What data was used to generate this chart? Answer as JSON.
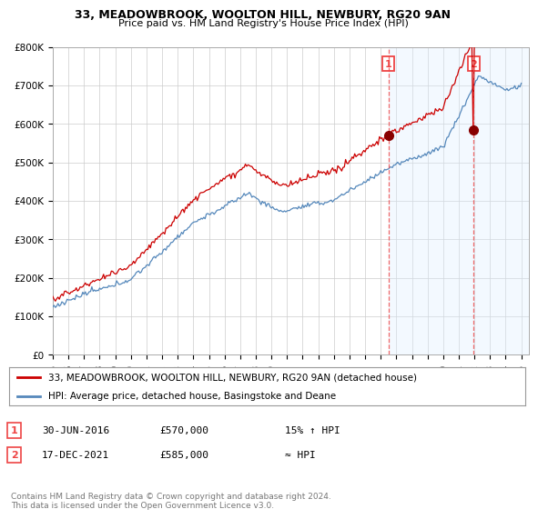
{
  "title": "33, MEADOWBROOK, WOOLTON HILL, NEWBURY, RG20 9AN",
  "subtitle": "Price paid vs. HM Land Registry's House Price Index (HPI)",
  "ylabel_ticks": [
    "£0",
    "£100K",
    "£200K",
    "£300K",
    "£400K",
    "£500K",
    "£600K",
    "£700K",
    "£800K"
  ],
  "ytick_values": [
    0,
    100000,
    200000,
    300000,
    400000,
    500000,
    600000,
    700000,
    800000
  ],
  "ylim": [
    0,
    800000
  ],
  "xlim_start": 1995,
  "xlim_end": 2025.5,
  "sale1_date_num": 2016.5,
  "sale1_price": 570000,
  "sale1_label": "1",
  "sale2_date_num": 2021.95,
  "sale2_price": 585000,
  "sale2_label": "2",
  "legend_line1": "33, MEADOWBROOK, WOOLTON HILL, NEWBURY, RG20 9AN (detached house)",
  "legend_line2": "HPI: Average price, detached house, Basingstoke and Deane",
  "table_row1": [
    "1",
    "30-JUN-2016",
    "£570,000",
    "15% ↑ HPI"
  ],
  "table_row2": [
    "2",
    "17-DEC-2021",
    "£585,000",
    "≈ HPI"
  ],
  "footer": "Contains HM Land Registry data © Crown copyright and database right 2024.\nThis data is licensed under the Open Government Licence v3.0.",
  "line_color_red": "#cc0000",
  "line_color_blue": "#5588bb",
  "fill_color_blue": "#ddeeff",
  "dashed_vline_color": "#ee4444",
  "background_color": "#ffffff",
  "grid_color": "#cccccc",
  "sale_marker_color": "#880000",
  "title_fontsize": 9,
  "subtitle_fontsize": 8,
  "tick_fontsize": 7.5,
  "legend_fontsize": 7.5,
  "table_fontsize": 8,
  "footer_fontsize": 6.5
}
